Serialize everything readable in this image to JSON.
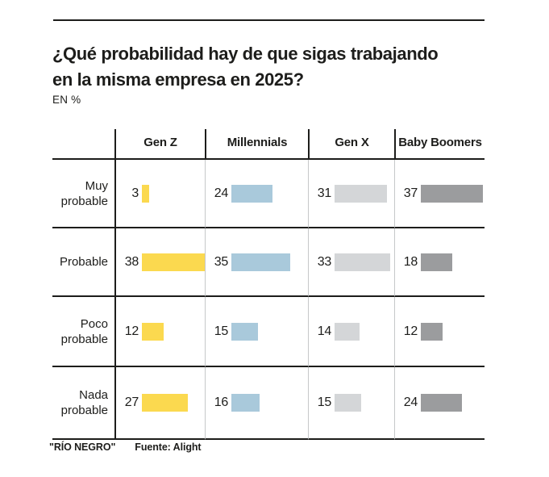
{
  "page": {
    "title": "¿Qué probabilidad hay de que sigas trabajando\nen la misma empresa en 2025?",
    "unit_label": "EN %"
  },
  "chart_data": {
    "type": "bar",
    "orientation": "horizontal",
    "layout": "table-grid",
    "title": "¿Qué probabilidad hay de que sigas trabajando en la misma empresa en 2025?",
    "unit": "EN %",
    "categories": [
      "Muy probable",
      "Probable",
      "Poco probable",
      "Nada probable"
    ],
    "series": [
      {
        "name": "Gen Z",
        "color": "#FBD94F",
        "values": [
          3,
          38,
          12,
          27
        ]
      },
      {
        "name": "Millennials",
        "color": "#A9C9DB",
        "values": [
          24,
          35,
          15,
          16
        ]
      },
      {
        "name": "Gen X",
        "color": "#D4D6D8",
        "values": [
          31,
          33,
          14,
          15
        ]
      },
      {
        "name": "Baby Boomers",
        "color": "#9B9C9E",
        "values": [
          37,
          18,
          12,
          24
        ]
      }
    ],
    "value_range": [
      0,
      38
    ],
    "grid": "on",
    "legend_position": "column-headers"
  },
  "footer": {
    "brand": "\"RÍO NEGRO\"",
    "source": "Fuente: Alight"
  },
  "colors": {
    "text": "#1D1D1B",
    "rule_dark": "#1D1D1B",
    "rule_light": "#C6C8C9",
    "background": "#FFFFFF"
  }
}
